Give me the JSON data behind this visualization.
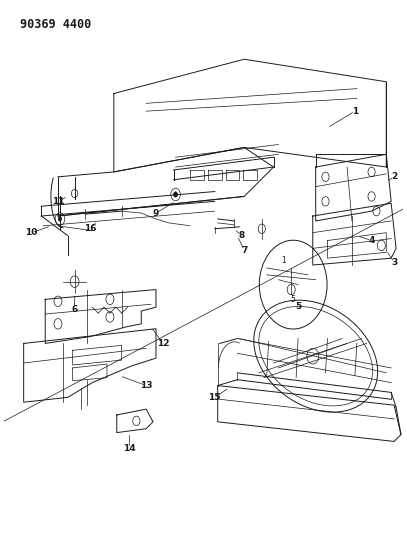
{
  "title": "90369 4400",
  "bg_color": "#ffffff",
  "line_color": "#1a1a1a",
  "title_fontsize": 8.5,
  "fig_width": 4.07,
  "fig_height": 5.33,
  "dpi": 100,
  "label_fontsize": 6.5
}
